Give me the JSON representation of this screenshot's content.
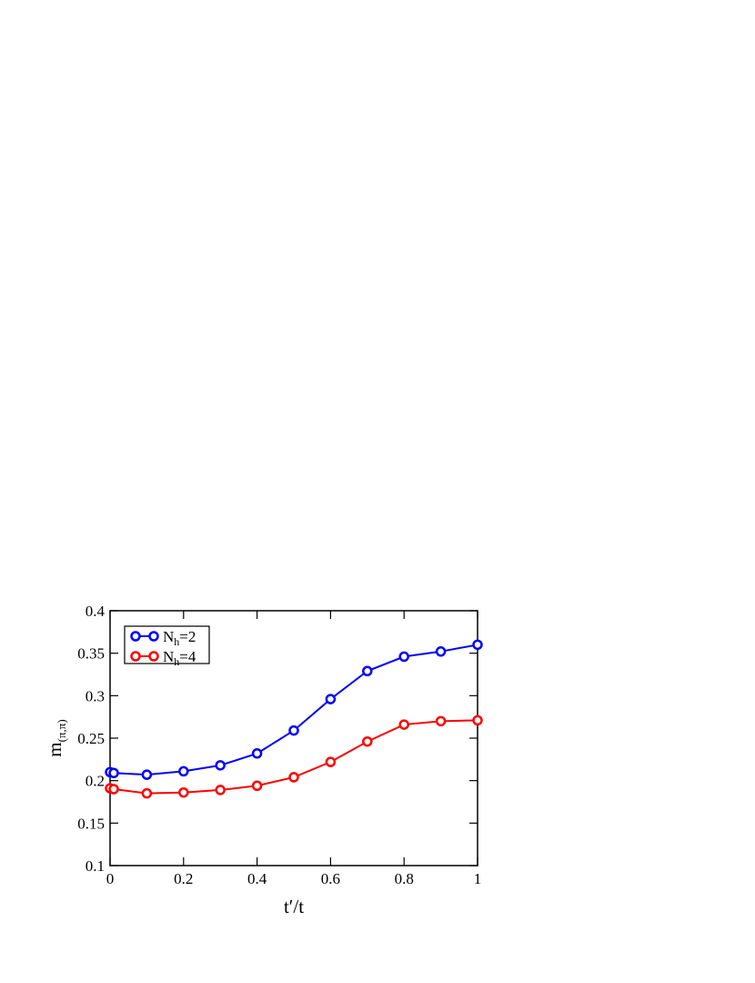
{
  "chart_data": {
    "type": "line",
    "xlabel": "t′/t",
    "ylabel": [
      "m",
      "(π,π)"
    ],
    "x": [
      0,
      0.01,
      0.1,
      0.2,
      0.3,
      0.4,
      0.5,
      0.6,
      0.7,
      0.8,
      0.9,
      1.0
    ],
    "series": [
      {
        "name": [
          "N",
          "h",
          "=2"
        ],
        "color": "#0000ff",
        "values": [
          0.21,
          0.209,
          0.207,
          0.211,
          0.218,
          0.232,
          0.259,
          0.296,
          0.329,
          0.346,
          0.352,
          0.36
        ]
      },
      {
        "name": [
          "N",
          "h",
          "=4"
        ],
        "color": "#ff0000",
        "values": [
          0.191,
          0.19,
          0.185,
          0.186,
          0.189,
          0.194,
          0.204,
          0.222,
          0.246,
          0.266,
          0.27,
          0.271
        ]
      }
    ],
    "xlim": [
      0,
      1
    ],
    "ylim": [
      0.1,
      0.4
    ],
    "xticks": [
      0,
      0.2,
      0.4,
      0.6,
      0.8,
      1
    ],
    "yticks": [
      0.1,
      0.15,
      0.2,
      0.25,
      0.3,
      0.35,
      0.4
    ],
    "legend": "upper-left"
  }
}
